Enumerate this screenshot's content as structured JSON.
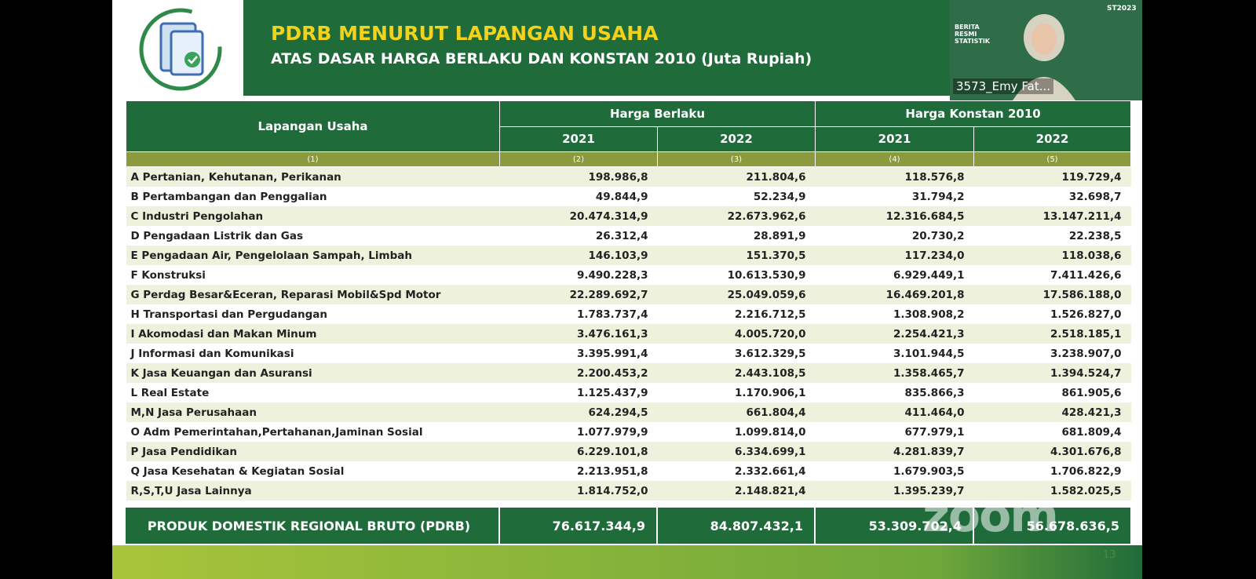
{
  "header": {
    "title": "PDRB MENURUT LAPANGAN USAHA",
    "subtitle": "ATAS DASAR HARGA BERLAKU DAN KONSTAN 2010 (Juta Rupiah)"
  },
  "video": {
    "name": "3573_Emy Fat...",
    "badge": "BERITA RESMI STATISTIK",
    "brand": "ST2023"
  },
  "table": {
    "col_header": "Lapangan Usaha",
    "groups": [
      "Harga Berlaku",
      "Harga Konstan 2010"
    ],
    "years": [
      "2021",
      "2022",
      "2021",
      "2022"
    ],
    "col_numbers": [
      "(1)",
      "(2)",
      "(3)",
      "(4)",
      "(5)"
    ],
    "rows": [
      [
        "A  Pertanian, Kehutanan, Perikanan",
        "198.986,8",
        "211.804,6",
        "118.576,8",
        "119.729,4"
      ],
      [
        "B  Pertambangan dan Penggalian",
        "49.844,9",
        "52.234,9",
        "31.794,2",
        "32.698,7"
      ],
      [
        "C  Industri Pengolahan",
        "20.474.314,9",
        "22.673.962,6",
        "12.316.684,5",
        "13.147.211,4"
      ],
      [
        "D  Pengadaan Listrik dan Gas",
        "26.312,4",
        "28.891,9",
        "20.730,2",
        "22.238,5"
      ],
      [
        "E  Pengadaan Air,  Pengelolaan Sampah, Limbah",
        "146.103,9",
        "151.370,5",
        "117.234,0",
        "118.038,6"
      ],
      [
        "F  Konstruksi",
        "9.490.228,3",
        "10.613.530,9",
        "6.929.449,1",
        "7.411.426,6"
      ],
      [
        "G  Perdag  Besar&Eceran, Reparasi Mobil&Spd Motor",
        "22.289.692,7",
        "25.049.059,6",
        "16.469.201,8",
        "17.586.188,0"
      ],
      [
        "H  Transportasi dan Pergudangan",
        "1.783.737,4",
        "2.216.712,5",
        "1.308.908,2",
        "1.526.827,0"
      ],
      [
        "I   Akomodasi dan Makan Minum",
        "3.476.161,3",
        "4.005.720,0",
        "2.254.421,3",
        "2.518.185,1"
      ],
      [
        "J  Informasi dan Komunikasi",
        "3.395.991,4",
        "3.612.329,5",
        "3.101.944,5",
        "3.238.907,0"
      ],
      [
        "K  Jasa Keuangan dan Asuransi",
        "2.200.453,2",
        "2.443.108,5",
        "1.358.465,7",
        "1.394.524,7"
      ],
      [
        "L  Real Estate",
        "1.125.437,9",
        "1.170.906,1",
        "835.866,3",
        "861.905,6"
      ],
      [
        "M,N  Jasa Perusahaan",
        "624.294,5",
        "661.804,4",
        "411.464,0",
        "428.421,3"
      ],
      [
        "O   Adm  Pemerintahan,Pertahanan,Jaminan Sosial",
        "1.077.979,9",
        "1.099.814,0",
        "677.979,1",
        "681.809,4"
      ],
      [
        "P  Jasa Pendidikan",
        "6.229.101,8",
        "6.334.699,1",
        "4.281.839,7",
        "4.301.676,8"
      ],
      [
        "Q  Jasa Kesehatan & Kegiatan Sosial",
        "2.213.951,8",
        "2.332.661,4",
        "1.679.903,5",
        "1.706.822,9"
      ],
      [
        "R,S,T,U  Jasa Lainnya",
        "1.814.752,0",
        "2.148.821,4",
        "1.395.239,7",
        "1.582.025,5"
      ]
    ],
    "total": [
      "PRODUK DOMESTIK REGIONAL BRUTO (PDRB)",
      "76.617.344,9",
      "84.807.432,1",
      "53.309.702,4",
      "56.678.636,5"
    ]
  },
  "watermark": "zoom",
  "page_number": "13"
}
